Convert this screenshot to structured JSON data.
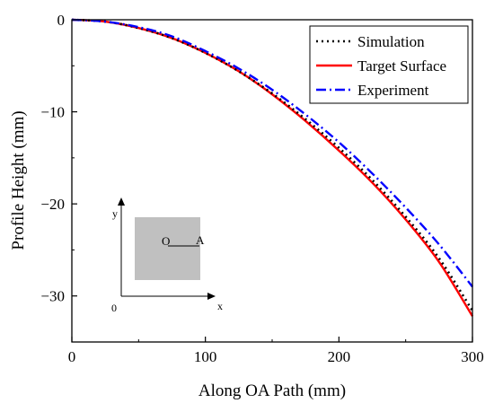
{
  "chart_data": {
    "type": "line",
    "title": "",
    "xlabel": "Along OA Path (mm)",
    "ylabel": "Profile Height (mm)",
    "xlim": [
      0,
      300
    ],
    "ylim": [
      -35,
      0
    ],
    "xticks": [
      0,
      100,
      200,
      300
    ],
    "yticks": [
      0,
      -10,
      -20,
      -30
    ],
    "xtick_labels": [
      "0",
      "100",
      "200",
      "300"
    ],
    "ytick_labels": [
      "0",
      "−10",
      "−20",
      "−30"
    ],
    "grid": false,
    "legend_position": "top-right",
    "series": [
      {
        "name": "Simulation",
        "color": "#000000",
        "style": "dotted",
        "x": [
          0,
          25,
          50,
          75,
          100,
          125,
          150,
          175,
          200,
          225,
          250,
          275,
          300
        ],
        "y": [
          0,
          -0.2,
          -0.9,
          -2.0,
          -3.6,
          -5.6,
          -8.0,
          -10.8,
          -13.9,
          -17.4,
          -21.4,
          -25.9,
          -31.6
        ]
      },
      {
        "name": "Target Surface",
        "color": "#ff0000",
        "style": "solid",
        "x": [
          0,
          25,
          50,
          75,
          100,
          125,
          150,
          175,
          200,
          225,
          250,
          275,
          300
        ],
        "y": [
          0,
          -0.2,
          -0.9,
          -2.0,
          -3.6,
          -5.6,
          -8.1,
          -11.0,
          -14.2,
          -17.7,
          -21.7,
          -26.3,
          -32.2
        ]
      },
      {
        "name": "Experiment",
        "color": "#0000ff",
        "style": "dashdot",
        "x": [
          0,
          25,
          50,
          75,
          100,
          125,
          150,
          175,
          200,
          225,
          250,
          275,
          300
        ],
        "y": [
          0,
          -0.2,
          -0.8,
          -1.8,
          -3.4,
          -5.3,
          -7.6,
          -10.3,
          -13.3,
          -16.7,
          -20.4,
          -24.4,
          -29.0
        ]
      }
    ],
    "inset": {
      "y_label": "y",
      "x_label": "x",
      "origin_label": "0",
      "point_o": "O",
      "point_a": "A",
      "fill": "#c0c0c0"
    }
  }
}
